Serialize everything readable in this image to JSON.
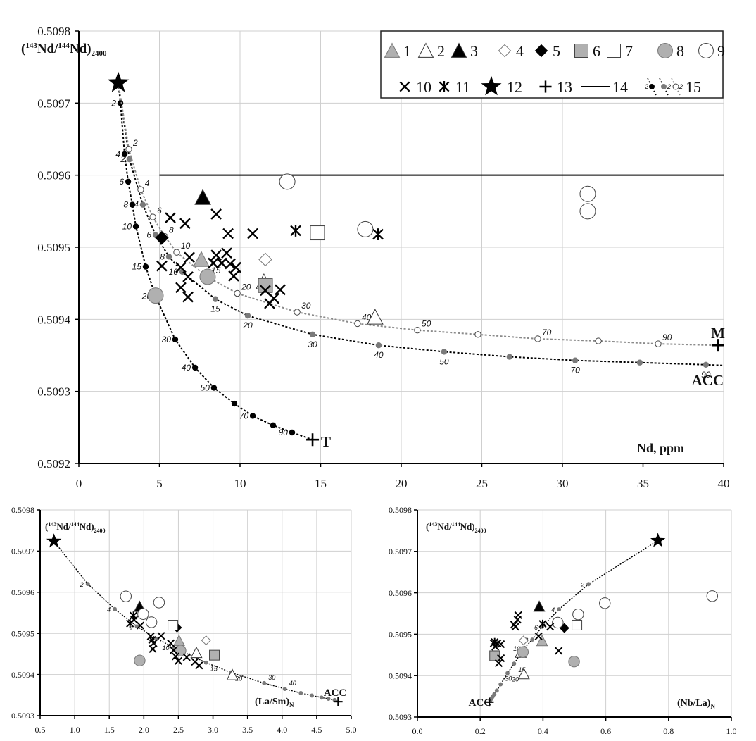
{
  "legend": {
    "items": [
      {
        "id": 1,
        "label": "1",
        "symbol": "gray-triangle"
      },
      {
        "id": 2,
        "label": "2",
        "symbol": "open-triangle"
      },
      {
        "id": 3,
        "label": "3",
        "symbol": "black-triangle"
      },
      {
        "id": 4,
        "label": "4",
        "symbol": "open-diamond"
      },
      {
        "id": 5,
        "label": "5",
        "symbol": "black-diamond"
      },
      {
        "id": 6,
        "label": "6",
        "symbol": "gray-square"
      },
      {
        "id": 7,
        "label": "7",
        "symbol": "open-square"
      },
      {
        "id": 8,
        "label": "8",
        "symbol": "gray-circle"
      },
      {
        "id": 9,
        "label": "9",
        "symbol": "open-circle"
      },
      {
        "id": 10,
        "label": "10",
        "symbol": "cross"
      },
      {
        "id": 11,
        "label": "11",
        "symbol": "asterisk"
      },
      {
        "id": 12,
        "label": "12",
        "symbol": "star"
      },
      {
        "id": 13,
        "label": "13",
        "symbol": "plus"
      },
      {
        "id": 14,
        "label": "14",
        "symbol": "solid-line"
      },
      {
        "id": 15,
        "label": "15",
        "symbol": "mixing-curves",
        "sample_tick": "2"
      }
    ]
  },
  "colors": {
    "gray_fill": "#b0b0b0",
    "acc_dot": "#7a7a7a",
    "grid": "#cfcfcf",
    "m_line": "#8a8a8a"
  },
  "chart_data": [
    {
      "type": "scatter",
      "title": "",
      "ylabel_parts": {
        "open": "(",
        "sup1": "143",
        "a": "Nd/",
        "sup2": "144",
        "b": "Nd)",
        "sub": "2400"
      },
      "xlabel": "Nd, ppm",
      "xlim": [
        0,
        40
      ],
      "ylim": [
        0.5092,
        0.5098
      ],
      "xticks": [
        "0",
        "5",
        "10",
        "15",
        "20",
        "25",
        "30",
        "35",
        "40"
      ],
      "yticks": [
        "0.5092",
        "0.5093",
        "0.5094",
        "0.5095",
        "0.5096",
        "0.5097",
        "0.5098"
      ],
      "grid": true,
      "legend_position": "top-right",
      "horizontal_line": {
        "legend_id": 14,
        "y": 0.5096,
        "x_from": 5,
        "x_to": 40
      },
      "start": {
        "legend_id": 12,
        "x": 2.45,
        "y": 0.509728
      },
      "tracks": [
        {
          "name": "T",
          "end_label": "T",
          "end_marker": true,
          "style": "black",
          "x": [
            2.58,
            2.84,
            3.06,
            3.32,
            3.54,
            4.15,
            4.76,
            5.98,
            7.21,
            8.38,
            9.65,
            10.79,
            12.05,
            13.23
          ],
          "y": [
            0.5097,
            0.509629,
            0.509591,
            0.509559,
            0.509529,
            0.509473,
            0.509432,
            0.509372,
            0.509333,
            0.509305,
            0.509283,
            0.509266,
            0.509253,
            0.509243
          ],
          "labels": [
            "2",
            "4",
            "6",
            "8",
            "10",
            "15",
            "20",
            "30",
            "40",
            "50",
            "",
            "70",
            "",
            "90"
          ],
          "end": {
            "x": 14.5,
            "y": 0.509233
          }
        },
        {
          "name": "ACC",
          "end_label": "ACC",
          "end_marker": false,
          "style": "gray",
          "x": [
            3.14,
            3.97,
            4.76,
            5.59,
            6.42,
            8.47,
            10.48,
            14.5,
            18.6,
            22.66,
            26.72,
            30.79,
            34.8,
            38.9
          ],
          "y": [
            0.509622,
            0.509559,
            0.509517,
            0.509487,
            0.509466,
            0.509428,
            0.509405,
            0.509379,
            0.509364,
            0.509355,
            0.509348,
            0.509343,
            0.50934,
            0.509337
          ],
          "labels": [
            "2",
            "4",
            "6",
            "8",
            "10",
            "15",
            "20",
            "30",
            "40",
            "50",
            "",
            "70",
            "",
            "90"
          ],
          "end": {
            "x": 40,
            "y": 0.509336
          }
        },
        {
          "name": "M",
          "end_label": "M",
          "end_marker": true,
          "style": "open",
          "x": [
            3.1,
            3.84,
            4.59,
            5.33,
            6.07,
            7.95,
            9.83,
            13.54,
            17.29,
            21.0,
            24.76,
            28.47,
            32.23,
            35.94
          ],
          "y": [
            0.509636,
            0.50958,
            0.509542,
            0.509515,
            0.509493,
            0.509459,
            0.509436,
            0.50941,
            0.509394,
            0.509385,
            0.509379,
            0.509373,
            0.50937,
            0.509366
          ],
          "labels": [
            "2",
            "4",
            "6",
            "8",
            "10",
            "15",
            "20",
            "30",
            "40",
            "50",
            "",
            "70",
            "",
            "90"
          ],
          "end": {
            "x": 39.65,
            "y": 0.509364
          }
        }
      ],
      "series": [
        {
          "legend_id": 1,
          "points": [
            [
              7.6,
              0.509483
            ]
          ]
        },
        {
          "legend_id": 2,
          "points": [
            [
              11.48,
              0.509452
            ],
            [
              18.38,
              0.509403
            ]
          ]
        },
        {
          "legend_id": 3,
          "points": [
            [
              7.69,
              0.509569
            ]
          ]
        },
        {
          "legend_id": 4,
          "points": [
            [
              11.57,
              0.509483
            ]
          ]
        },
        {
          "legend_id": 5,
          "points": [
            [
              5.15,
              0.509513
            ]
          ]
        },
        {
          "legend_id": 6,
          "points": [
            [
              11.57,
              0.509447
            ]
          ]
        },
        {
          "legend_id": 7,
          "points": [
            [
              14.8,
              0.50952
            ]
          ]
        },
        {
          "legend_id": 8,
          "points": [
            [
              4.76,
              0.509433
            ],
            [
              7.99,
              0.509459
            ]
          ]
        },
        {
          "legend_id": 9,
          "points": [
            [
              12.93,
              0.509591
            ],
            [
              17.77,
              0.509525
            ],
            [
              31.57,
              0.509574
            ],
            [
              31.57,
              0.50955
            ]
          ]
        },
        {
          "legend_id": 10,
          "points": [
            [
              5.68,
              0.509541
            ],
            [
              6.59,
              0.509533
            ],
            [
              8.52,
              0.509546
            ],
            [
              9.26,
              0.509519
            ],
            [
              10.79,
              0.509519
            ],
            [
              6.86,
              0.509486
            ],
            [
              5.15,
              0.509474
            ],
            [
              8.52,
              0.509489
            ],
            [
              9.17,
              0.509492
            ],
            [
              8.34,
              0.509478
            ],
            [
              8.86,
              0.509478
            ],
            [
              9.39,
              0.509477
            ],
            [
              9.74,
              0.509472
            ],
            [
              9.61,
              0.50946
            ],
            [
              6.33,
              0.509472
            ],
            [
              6.77,
              0.509459
            ],
            [
              6.33,
              0.509444
            ],
            [
              6.77,
              0.509431
            ],
            [
              11.57,
              0.50944
            ],
            [
              12.49,
              0.509441
            ],
            [
              12.1,
              0.509429
            ],
            [
              11.83,
              0.509422
            ]
          ]
        },
        {
          "legend_id": 11,
          "points": [
            [
              13.45,
              0.509523
            ],
            [
              18.56,
              0.509518
            ]
          ]
        }
      ]
    },
    {
      "type": "scatter",
      "title": "",
      "ylabel_parts": {
        "open": "(",
        "sup1": "143",
        "a": "Nd/",
        "sup2": "144",
        "b": "Nd)",
        "sub": "2400"
      },
      "xlabel_parts": {
        "main": "(La/Sm)",
        "sub": "N"
      },
      "xlim": [
        0.5,
        5.0
      ],
      "ylim": [
        0.5093,
        0.5098
      ],
      "xticks": [
        "0.5",
        "1.0",
        "1.5",
        "2.0",
        "2.5",
        "3.0",
        "3.5",
        "4.0",
        "4.5",
        "5.0"
      ],
      "yticks": [
        "0.5093",
        "0.5094",
        "0.5095",
        "0.5096",
        "0.5097",
        "0.5098"
      ],
      "grid": true,
      "start": {
        "legend_id": 12,
        "x": 0.7,
        "y": 0.509724
      },
      "tracks": [
        {
          "name": "ACC",
          "end_label": "ACC",
          "end_marker": true,
          "style": "gray",
          "x": [
            1.19,
            1.58,
            1.9,
            2.19,
            2.43,
            2.9,
            3.26,
            3.74,
            4.04,
            4.27,
            4.43,
            4.57,
            4.67,
            4.76
          ],
          "y": [
            0.50962,
            0.509559,
            0.509517,
            0.509487,
            0.509466,
            0.509429,
            0.509405,
            0.509379,
            0.509365,
            0.509355,
            0.509349,
            0.509344,
            0.509341,
            0.509338
          ],
          "labels": [
            "2",
            "4",
            "6",
            "8",
            "10",
            "15",
            "20",
            "30",
            "40",
            "",
            "",
            "",
            "",
            ""
          ],
          "end": {
            "x": 4.81,
            "y": 0.509334
          }
        }
      ],
      "series": [
        {
          "legend_id": 1,
          "points": [
            [
              2.51,
              0.509482
            ]
          ]
        },
        {
          "legend_id": 2,
          "points": [
            [
              2.76,
              0.509453
            ],
            [
              3.28,
              0.509399
            ]
          ]
        },
        {
          "legend_id": 3,
          "points": [
            [
              1.94,
              0.509565
            ]
          ]
        },
        {
          "legend_id": 4,
          "points": [
            [
              2.9,
              0.509483
            ]
          ]
        },
        {
          "legend_id": 5,
          "points": [
            [
              2.48,
              0.509514
            ]
          ]
        },
        {
          "legend_id": 6,
          "points": [
            [
              3.02,
              0.509447
            ]
          ]
        },
        {
          "legend_id": 7,
          "points": [
            [
              2.42,
              0.50952
            ]
          ]
        },
        {
          "legend_id": 8,
          "points": [
            [
              1.94,
              0.509434
            ],
            [
              2.53,
              0.509458
            ]
          ]
        },
        {
          "legend_id": 9,
          "points": [
            [
              1.74,
              0.50959
            ],
            [
              2.22,
              0.509575
            ],
            [
              1.99,
              0.509547
            ],
            [
              2.11,
              0.509527
            ]
          ]
        },
        {
          "legend_id": 10,
          "points": [
            [
              1.86,
              0.509533
            ],
            [
              1.95,
              0.509519
            ],
            [
              2.1,
              0.509493
            ],
            [
              2.25,
              0.509494
            ],
            [
              2.12,
              0.509484
            ],
            [
              2.14,
              0.509476
            ],
            [
              2.13,
              0.509462
            ],
            [
              2.39,
              0.509476
            ],
            [
              2.43,
              0.509459
            ],
            [
              2.46,
              0.509444
            ],
            [
              2.5,
              0.509433
            ],
            [
              2.62,
              0.509442
            ],
            [
              2.74,
              0.509431
            ],
            [
              2.8,
              0.509422
            ]
          ]
        },
        {
          "legend_id": 11,
          "points": [
            [
              1.85,
              0.509543
            ],
            [
              1.8,
              0.509524
            ]
          ]
        }
      ]
    },
    {
      "type": "scatter",
      "title": "",
      "ylabel_parts": {
        "open": "(",
        "sup1": "143",
        "a": "Nd/",
        "sup2": "144",
        "b": "Nd)",
        "sub": "2400"
      },
      "xlabel_parts": {
        "main": "(Nb/La)",
        "sub": "N"
      },
      "xlim": [
        0,
        1.0
      ],
      "ylim": [
        0.5093,
        0.5098
      ],
      "xticks": [
        "0.0",
        "0.2",
        "0.4",
        "0.6",
        "0.8",
        "1.0"
      ],
      "yticks": [
        "0.5093",
        "0.5094",
        "0.5095",
        "0.5096",
        "0.5097",
        "0.5098"
      ],
      "grid": true,
      "start": {
        "legend_id": 12,
        "x": 0.766,
        "y": 0.509726
      },
      "tracks": [
        {
          "name": "ACC",
          "end_label": "ACC",
          "end_marker": true,
          "style": "gray",
          "x": [
            0.545,
            0.451,
            0.397,
            0.366,
            0.341,
            0.308,
            0.287,
            0.265,
            0.253,
            0.245,
            0.24,
            0.237,
            0.234,
            0.232
          ],
          "y": [
            0.509621,
            0.50956,
            0.509518,
            0.509487,
            0.509467,
            0.509429,
            0.509406,
            0.509379,
            0.509364,
            0.509355,
            0.50935,
            0.509346,
            0.509343,
            0.509341
          ],
          "labels": [
            "2",
            "4",
            "6",
            "8",
            "10",
            "15",
            "20",
            "30",
            "",
            "",
            "",
            "",
            "",
            ""
          ],
          "end": {
            "x": 0.229,
            "y": 0.509336
          }
        }
      ],
      "series": [
        {
          "legend_id": 1,
          "points": [
            [
              0.397,
              0.509484
            ]
          ]
        },
        {
          "legend_id": 2,
          "points": [
            [
              0.339,
              0.509404
            ],
            [
              0.329,
              0.509456
            ]
          ]
        },
        {
          "legend_id": 3,
          "points": [
            [
              0.388,
              0.509567
            ]
          ]
        },
        {
          "legend_id": 4,
          "points": [
            [
              0.338,
              0.509485
            ]
          ]
        },
        {
          "legend_id": 5,
          "points": [
            [
              0.468,
              0.509515
            ]
          ]
        },
        {
          "legend_id": 6,
          "points": [
            [
              0.246,
              0.509448
            ]
          ]
        },
        {
          "legend_id": 7,
          "points": [
            [
              0.508,
              0.509522
            ]
          ]
        },
        {
          "legend_id": 8,
          "points": [
            [
              0.336,
              0.509457
            ],
            [
              0.499,
              0.509434
            ]
          ]
        },
        {
          "legend_id": 9,
          "points": [
            [
              0.939,
              0.509592
            ],
            [
              0.597,
              0.509575
            ],
            [
              0.512,
              0.509548
            ],
            [
              0.447,
              0.509528
            ]
          ]
        },
        {
          "legend_id": 10,
          "points": [
            [
              0.321,
              0.509546
            ],
            [
              0.319,
              0.509535
            ],
            [
              0.308,
              0.509523
            ],
            [
              0.312,
              0.509518
            ],
            [
              0.243,
              0.509478
            ],
            [
              0.255,
              0.509478
            ],
            [
              0.266,
              0.509476
            ],
            [
              0.248,
              0.50947
            ],
            [
              0.266,
              0.509442
            ],
            [
              0.259,
              0.50943
            ],
            [
              0.386,
              0.509495
            ],
            [
              0.423,
              0.509518
            ],
            [
              0.45,
              0.50946
            ]
          ]
        },
        {
          "legend_id": 11,
          "points": [
            [
              0.399,
              0.509525
            ],
            [
              0.246,
              0.509481
            ]
          ]
        }
      ]
    }
  ]
}
